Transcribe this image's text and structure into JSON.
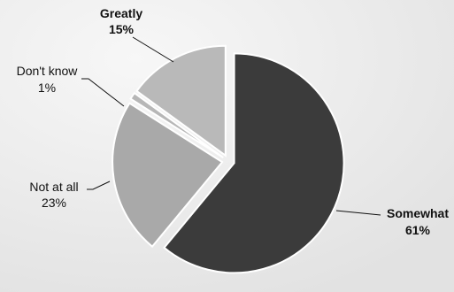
{
  "chart_data": {
    "type": "pie",
    "title": "",
    "legend": "none",
    "categories": [
      "Somewhat",
      "Not at all",
      "Don't know",
      "Greatly"
    ],
    "values": [
      61,
      23,
      1,
      15
    ],
    "value_labels": [
      "61%",
      "23%",
      "1%",
      "15%"
    ],
    "colors": {
      "Somewhat": "#3b3b3b",
      "Not at all": "#a9a9a9",
      "Don't know": "#b7b7b7",
      "Greatly": "#b9b9b9",
      "background": "#ececec"
    }
  }
}
